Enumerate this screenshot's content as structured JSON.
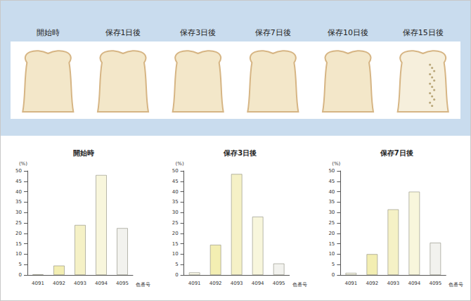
{
  "panel": {
    "labels": [
      "開始時",
      "保存1日後",
      "保存3日後",
      "保存7日後",
      "保存10日後",
      "保存15日後"
    ]
  },
  "chart_data": [
    {
      "type": "bar",
      "title": "開始時",
      "ylabel": "(%)",
      "xlabel": "色番号",
      "categories": [
        "4091",
        "4092",
        "4093",
        "4094",
        "4095"
      ],
      "values": [
        0.3,
        4.5,
        24,
        48,
        22.5
      ],
      "colors": [
        "#fbf9e8",
        "#f3eeb2",
        "#f5f1c6",
        "#f8f6dc",
        "#f2f2ee"
      ],
      "ylim": [
        0,
        50
      ],
      "yticks": [
        0,
        5,
        10,
        15,
        20,
        25,
        30,
        35,
        40,
        45,
        50
      ],
      "grid": false
    },
    {
      "type": "bar",
      "title": "保存3日後",
      "ylabel": "(%)",
      "xlabel": "色番号",
      "categories": [
        "4091",
        "4092",
        "4093",
        "4094",
        "4095"
      ],
      "values": [
        1.2,
        14.5,
        48.5,
        28,
        5.5
      ],
      "colors": [
        "#fbf9e8",
        "#f3eeb2",
        "#f5f1c6",
        "#f8f6dc",
        "#f2f2ee"
      ],
      "ylim": [
        0,
        50
      ],
      "yticks": [
        0,
        5,
        10,
        15,
        20,
        25,
        30,
        35,
        40,
        45,
        50
      ],
      "grid": false
    },
    {
      "type": "bar",
      "title": "保存7日後",
      "ylabel": "(%)",
      "xlabel": "色番号",
      "categories": [
        "4091",
        "4092",
        "4093",
        "4094",
        "4095"
      ],
      "values": [
        1,
        10,
        31.5,
        40,
        15.5
      ],
      "colors": [
        "#fbf9e8",
        "#f3eeb2",
        "#f5f1c6",
        "#f8f6dc",
        "#f2f2ee"
      ],
      "ylim": [
        0,
        50
      ],
      "yticks": [
        0,
        5,
        10,
        15,
        20,
        25,
        30,
        35,
        40,
        45,
        50
      ],
      "grid": false
    }
  ]
}
